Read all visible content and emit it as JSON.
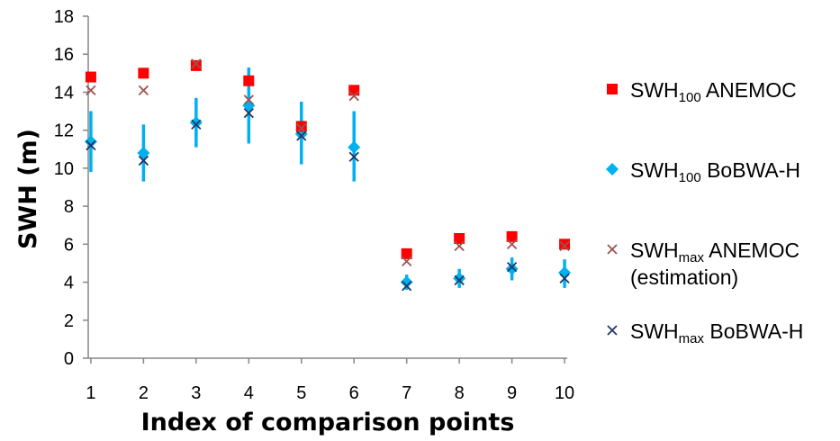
{
  "chart_data": {
    "type": "scatter",
    "xlabel": "Index of comparison points",
    "ylabel": "SWH (m)",
    "ylim": [
      0,
      18
    ],
    "xlim": [
      0.95,
      10.05
    ],
    "yticks": [
      0,
      2,
      4,
      6,
      8,
      10,
      12,
      14,
      16,
      18
    ],
    "xticks": [
      1,
      2,
      3,
      4,
      5,
      6,
      7,
      8,
      9,
      10
    ],
    "legend_position": "right",
    "grid": false,
    "x": [
      1,
      2,
      3,
      4,
      5,
      6,
      7,
      8,
      9,
      10
    ],
    "series": [
      {
        "key": "swh100_anemoc",
        "marker": "square",
        "color": "#ff0000",
        "values": [
          14.8,
          15.0,
          15.4,
          14.6,
          12.2,
          14.1,
          5.5,
          6.3,
          6.4,
          6.0
        ]
      },
      {
        "key": "swh100_bobwa",
        "marker": "diamond",
        "color": "#00b0f0",
        "values": [
          11.4,
          10.8,
          12.4,
          13.3,
          11.8,
          11.1,
          4.0,
          4.2,
          4.7,
          4.5
        ],
        "error_low": [
          9.8,
          9.3,
          11.1,
          11.3,
          10.2,
          9.3,
          3.6,
          3.7,
          4.1,
          3.7
        ],
        "error_high": [
          13.0,
          12.3,
          13.7,
          15.3,
          13.5,
          13.0,
          4.4,
          4.7,
          5.3,
          5.2
        ]
      },
      {
        "key": "swhmax_anemoc",
        "marker": "x",
        "color": "#a05050",
        "values": [
          14.1,
          14.1,
          15.5,
          13.6,
          12.1,
          13.8,
          5.1,
          5.9,
          6.0,
          5.9
        ]
      },
      {
        "key": "swhmax_bobwa",
        "marker": "x",
        "color": "#1f3864",
        "values": [
          11.2,
          10.4,
          12.3,
          12.9,
          11.7,
          10.6,
          3.8,
          4.1,
          4.8,
          4.2
        ]
      }
    ],
    "legend": [
      {
        "main": "SWH",
        "sub": "100",
        "rest": " ANEMOC",
        "line2": ""
      },
      {
        "main": "SWH",
        "sub": "100",
        "rest": " BoBWA-H",
        "line2": ""
      },
      {
        "main": "SWH",
        "sub": "max",
        "rest": " ANEMOC",
        "line2": "(estimation)"
      },
      {
        "main": "SWH",
        "sub": "max",
        "rest": " BoBWA-H",
        "line2": ""
      }
    ]
  }
}
